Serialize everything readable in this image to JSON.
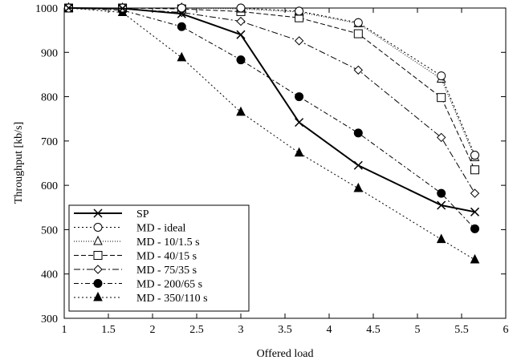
{
  "chart_data": {
    "type": "line",
    "title": "",
    "xlabel": "Offered load",
    "ylabel": "Throughput [kb/s]",
    "xlim": [
      1,
      6
    ],
    "ylim": [
      300,
      1000
    ],
    "xticks": [
      1,
      1.5,
      2,
      2.5,
      3,
      3.5,
      4,
      4.5,
      5,
      5.5,
      6
    ],
    "xtick_labels": [
      "1",
      "1.5",
      "2",
      "2.5",
      "3",
      "3.5",
      "4",
      "4.5",
      "5",
      "5.5",
      "6"
    ],
    "yticks": [
      300,
      400,
      500,
      600,
      700,
      800,
      900,
      1000
    ],
    "ytick_labels": [
      "300",
      "400",
      "500",
      "600",
      "700",
      "800",
      "900",
      "1000"
    ],
    "grid": false,
    "legend_position": "bottom-left",
    "series": [
      {
        "name": "SP",
        "marker": "cross",
        "dash": "",
        "stroke_width": 2,
        "x": [
          1.05,
          1.66,
          2.33,
          3.0,
          3.66,
          4.33,
          5.27,
          5.65
        ],
        "y": [
          1000,
          999,
          987,
          940,
          742,
          645,
          555,
          540
        ]
      },
      {
        "name": "MD - ideal",
        "marker": "circle-open",
        "dash": "2,3",
        "stroke_width": 1,
        "x": [
          1.05,
          1.66,
          2.33,
          3.0,
          3.66,
          4.33,
          5.27,
          5.65
        ],
        "y": [
          1000,
          1000,
          1000,
          1000,
          993,
          967,
          847,
          668
        ]
      },
      {
        "name": "MD - 10/1.5 s",
        "marker": "triangle-open",
        "dash": "1,2",
        "stroke_width": 1,
        "x": [
          1.05,
          1.66,
          2.33,
          3.0,
          3.66,
          4.33,
          5.27,
          5.65
        ],
        "y": [
          1000,
          1000,
          1000,
          998,
          991,
          965,
          840,
          663
        ]
      },
      {
        "name": "MD - 40/15 s",
        "marker": "square-open",
        "dash": "6,3",
        "stroke_width": 1,
        "x": [
          1.05,
          1.66,
          2.33,
          3.0,
          3.66,
          4.33,
          5.27,
          5.65
        ],
        "y": [
          1000,
          1000,
          998,
          992,
          978,
          942,
          798,
          635
        ]
      },
      {
        "name": "MD - 75/35 s",
        "marker": "diamond-open",
        "dash": "8,3,2,3",
        "stroke_width": 1,
        "x": [
          1.05,
          1.66,
          2.33,
          3.0,
          3.66,
          4.33,
          5.27,
          5.65
        ],
        "y": [
          1000,
          998,
          990,
          970,
          926,
          860,
          708,
          582
        ]
      },
      {
        "name": "MD - 200/65 s",
        "marker": "circle-filled",
        "dash": "6,3,2,3",
        "stroke_width": 1,
        "x": [
          1.05,
          1.66,
          2.33,
          3.0,
          3.66,
          4.33,
          5.27,
          5.65
        ],
        "y": [
          1000,
          995,
          958,
          883,
          800,
          718,
          582,
          502
        ]
      },
      {
        "name": "MD - 350/110 s",
        "marker": "triangle-filled",
        "dash": "2,3",
        "stroke_width": 1,
        "x": [
          1.05,
          1.66,
          2.33,
          3.0,
          3.66,
          4.33,
          5.27,
          5.65
        ],
        "y": [
          1000,
          990,
          888,
          765,
          673,
          593,
          478,
          432
        ]
      }
    ]
  }
}
